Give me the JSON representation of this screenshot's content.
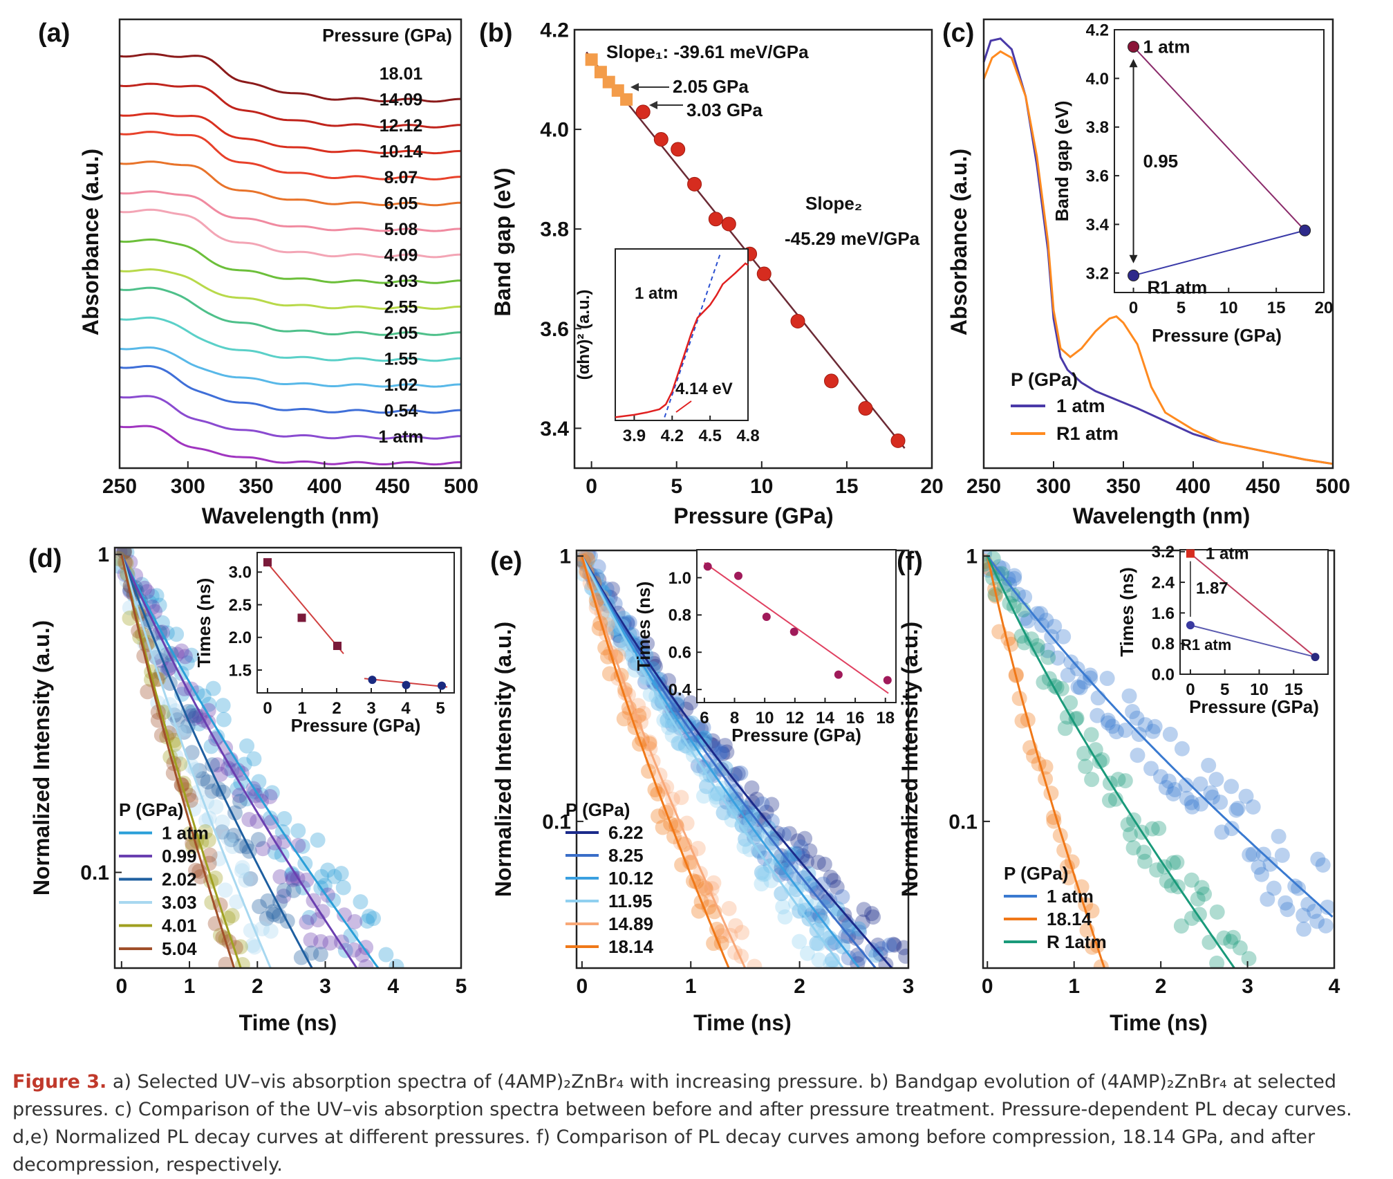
{
  "colors": {
    "caption_accent": "#c0392b",
    "orange_marker": "#f39c4a",
    "red_marker": "#d62c1f",
    "fit_line": "#6b2a35",
    "purple": "#4a3aa8",
    "orange": "#ff8a1f",
    "maroon": "#8a1538",
    "navy": "#1f2a7a"
  },
  "caption": {
    "label": "Figure 3.",
    "text": "a) Selected UV–vis absorption spectra of (4AMP)₂ZnBr₄ with increasing pressure. b) Bandgap evolution of (4AMP)₂ZnBr₄ at selected pressures. c) Comparison of the UV–vis absorption spectra between before and after pressure treatment. Pressure-dependent PL decay curves. d,e) Normalized PL decay curves at different pressures. f) Comparison of PL decay curves among before compression, 18.14 GPa, and after decompression, respectively."
  },
  "chart_data": [
    {
      "panel": "(a)",
      "type": "line",
      "xlabel": "Wavelength (nm)",
      "ylabel": "Absorbance (a.u.)",
      "xlim": [
        250,
        500
      ],
      "xticks": [
        250,
        300,
        350,
        400,
        450,
        500
      ],
      "legend_title": "Pressure (GPa)",
      "series": [
        {
          "name": "18.01",
          "color": "#8b1a1a"
        },
        {
          "name": "14.09",
          "color": "#c0241c"
        },
        {
          "name": "12.12",
          "color": "#d9301f"
        },
        {
          "name": "10.14",
          "color": "#e8412a"
        },
        {
          "name": "8.07",
          "color": "#e8732a"
        },
        {
          "name": "6.05",
          "color": "#f08aa0"
        },
        {
          "name": "5.08",
          "color": "#f3a5b5"
        },
        {
          "name": "4.09",
          "color": "#6cbf3a"
        },
        {
          "name": "3.03",
          "color": "#b8d94a"
        },
        {
          "name": "2.55",
          "color": "#4ec08a"
        },
        {
          "name": "2.05",
          "color": "#5ad0c8"
        },
        {
          "name": "1.55",
          "color": "#58b8e8"
        },
        {
          "name": "1.02",
          "color": "#3f6fd8"
        },
        {
          "name": "0.54",
          "color": "#8a4bd0"
        },
        {
          "name": "1 atm",
          "color": "#a035c0"
        }
      ]
    },
    {
      "panel": "(b)",
      "type": "scatter",
      "xlabel": "Pressure (GPa)",
      "ylabel": "Band gap (eV)",
      "xlim": [
        -1,
        20
      ],
      "ylim": [
        3.32,
        4.2
      ],
      "xticks": [
        0,
        5,
        10,
        15,
        20
      ],
      "yticks": [
        3.4,
        3.6,
        3.8,
        4.0,
        4.2
      ],
      "series": [
        {
          "name": "low-pressure",
          "marker": "square",
          "x": [
            0,
            0.54,
            1.02,
            1.55,
            2.05
          ],
          "y": [
            4.14,
            4.115,
            4.095,
            4.078,
            4.06
          ]
        },
        {
          "name": "high-pressure",
          "marker": "circle",
          "x": [
            3.03,
            4.09,
            5.08,
            6.05,
            7.3,
            8.07,
            9.3,
            10.14,
            12.12,
            14.09,
            16.1,
            18.01
          ],
          "y": [
            4.035,
            3.98,
            3.96,
            3.89,
            3.82,
            3.81,
            3.75,
            3.71,
            3.615,
            3.495,
            3.44,
            3.375
          ]
        }
      ],
      "fit_line": {
        "x": [
          -0.3,
          18.4
        ],
        "y": [
          4.155,
          3.36
        ]
      },
      "annotations": {
        "slope1": "Slope₁: -39.61 meV/GPa",
        "p1": "2.05 GPa",
        "p2": "3.03 GPa",
        "slope2_label": "Slope₂",
        "slope2_value": "-45.29 meV/GPa"
      },
      "inset": {
        "ylabel": "(αhv)² (a.u.)",
        "xlim": [
          3.75,
          4.8
        ],
        "xticks": [
          3.9,
          4.2,
          4.5,
          4.8
        ],
        "series_label": "1 atm",
        "gap_label": "4.14 eV",
        "curve": {
          "x": [
            3.75,
            3.9,
            4.0,
            4.1,
            4.15,
            4.2,
            4.25,
            4.3,
            4.35,
            4.4,
            4.5,
            4.55,
            4.6,
            4.7,
            4.78,
            4.8
          ],
          "y": [
            0.0,
            0.015,
            0.03,
            0.05,
            0.08,
            0.16,
            0.28,
            0.4,
            0.52,
            0.62,
            0.7,
            0.76,
            0.83,
            0.9,
            0.96,
            0.95
          ]
        },
        "tangent": {
          "x": [
            4.14,
            4.58
          ],
          "y": [
            0.0,
            1.02
          ]
        }
      }
    },
    {
      "panel": "(c)",
      "type": "line",
      "xlabel": "Wavelength (nm)",
      "ylabel": "Absorbance (a.u.)",
      "xlim": [
        250,
        500
      ],
      "ylim": [
        0,
        1
      ],
      "xticks": [
        250,
        300,
        350,
        400,
        450,
        500
      ],
      "legend_title": "P (GPa)",
      "series": [
        {
          "name": "1 atm",
          "color": "#4a3aa8",
          "x": [
            250,
            255,
            262,
            270,
            280,
            288,
            296,
            300,
            305,
            310,
            320,
            330,
            345,
            360,
            380,
            400,
            420,
            450,
            480,
            500
          ],
          "y": [
            0.94,
            0.99,
            0.995,
            0.97,
            0.86,
            0.7,
            0.5,
            0.34,
            0.25,
            0.22,
            0.19,
            0.17,
            0.15,
            0.13,
            0.1,
            0.07,
            0.05,
            0.03,
            0.01,
            0.0
          ]
        },
        {
          "name": "R1 atm",
          "color": "#ff8a1f",
          "x": [
            250,
            256,
            262,
            270,
            280,
            288,
            296,
            300,
            305,
            312,
            320,
            330,
            340,
            345,
            350,
            360,
            370,
            380,
            400,
            420,
            450,
            480,
            500
          ],
          "y": [
            0.9,
            0.95,
            0.965,
            0.95,
            0.86,
            0.72,
            0.52,
            0.36,
            0.27,
            0.25,
            0.27,
            0.31,
            0.34,
            0.345,
            0.33,
            0.28,
            0.18,
            0.12,
            0.08,
            0.05,
            0.03,
            0.01,
            0.0
          ]
        }
      ],
      "inset": {
        "xlabel": "Pressure (GPa)",
        "ylabel": "Band gap (eV)",
        "xlim": [
          -2,
          20
        ],
        "ylim": [
          3.12,
          4.2
        ],
        "xticks": [
          0,
          5,
          10,
          15,
          20
        ],
        "yticks": [
          3.2,
          3.4,
          3.6,
          3.8,
          4.0,
          4.2
        ],
        "points": [
          {
            "label": "1 atm",
            "x": 0,
            "y": 4.13,
            "color": "#8a1538"
          },
          {
            "label": "R1 atm",
            "x": 0,
            "y": 3.19,
            "color": "#2e2a8a"
          },
          {
            "label": "",
            "x": 18.01,
            "y": 3.375,
            "color": "#2e2a8a"
          }
        ],
        "diff_label": "0.95"
      }
    },
    {
      "panel": "(d)",
      "type": "scatter",
      "xlabel": "Time (ns)",
      "ylabel": "Normalized Intensity (a.u.)",
      "yscale": "log",
      "xlim": [
        -0.1,
        5
      ],
      "xticks": [
        0,
        1,
        2,
        3,
        4,
        5
      ],
      "ylim": [
        0.05,
        1.05
      ],
      "yticks": [
        0.1,
        1
      ],
      "yticklabels": [
        "0.1",
        "1"
      ],
      "legend_title": "P (GPa)",
      "series": [
        {
          "name": "1 atm",
          "color": "#2a9fd8",
          "tau": 1.55
        },
        {
          "name": "0.99",
          "color": "#6a3fb0",
          "tau": 1.42
        },
        {
          "name": "2.02",
          "color": "#1f5fa0",
          "tau": 1.15
        },
        {
          "name": "3.03",
          "color": "#a8d8f0",
          "tau": 0.9
        },
        {
          "name": "4.01",
          "color": "#a0a020",
          "tau": 0.72
        },
        {
          "name": "5.04",
          "color": "#a0502a",
          "tau": 0.68
        }
      ],
      "inset": {
        "xlabel": "Pressure (GPa)",
        "ylabel": "Times (ns)",
        "xlim": [
          -0.3,
          5.4
        ],
        "ylim": [
          1.15,
          3.3
        ],
        "xticks": [
          0,
          1,
          2,
          3,
          4,
          5
        ],
        "yticks": [
          1.5,
          2.0,
          2.5,
          3.0
        ],
        "yticklabels": [
          "1.5",
          "2.0",
          "2.5",
          "3.0"
        ],
        "squares": {
          "x": [
            0,
            0.99,
            2.02
          ],
          "y": [
            3.15,
            2.3,
            1.87
          ]
        },
        "circles": {
          "x": [
            3.03,
            4.01,
            5.04
          ],
          "y": [
            1.35,
            1.27,
            1.26
          ]
        }
      }
    },
    {
      "panel": "(e)",
      "type": "scatter",
      "xlabel": "Time (ns)",
      "ylabel": "Normalized Intensity (a.u.)",
      "yscale": "log",
      "xlim": [
        -0.05,
        3
      ],
      "xticks": [
        0,
        1,
        2,
        3
      ],
      "ylim": [
        0.028,
        1.05
      ],
      "yticks": [
        0.1,
        1
      ],
      "yticklabels": [
        "0.1",
        "1"
      ],
      "legend_title": "P (GPa)",
      "series": [
        {
          "name": "6.22",
          "color": "#1b2a8a",
          "tau": 0.95
        },
        {
          "name": "8.25",
          "color": "#3a6ec8",
          "tau": 0.9
        },
        {
          "name": "10.12",
          "color": "#3aa0e0",
          "tau": 0.85
        },
        {
          "name": "11.95",
          "color": "#90d0f0",
          "tau": 0.8
        },
        {
          "name": "14.89",
          "color": "#f8a878",
          "tau": 0.5
        },
        {
          "name": "18.14",
          "color": "#f07818",
          "tau": 0.45
        }
      ],
      "inset": {
        "xlabel": "Pressure (GPa)",
        "ylabel": "Times (ns)",
        "xlim": [
          5.5,
          18.7
        ],
        "ylim": [
          0.33,
          1.15
        ],
        "xticks": [
          6,
          8,
          10,
          12,
          14,
          16,
          18
        ],
        "yticks": [
          0.4,
          0.6,
          0.8,
          1.0
        ],
        "yticklabels": [
          "0.4",
          "0.6",
          "0.8",
          "1.0"
        ],
        "points": {
          "x": [
            6.22,
            8.25,
            10.12,
            11.95,
            14.89,
            18.14
          ],
          "y": [
            1.06,
            1.01,
            0.79,
            0.71,
            0.48,
            0.45
          ]
        }
      }
    },
    {
      "panel": "(f)",
      "type": "scatter",
      "xlabel": "Time (ns)",
      "ylabel": "Normalized Intensity (a.u.)",
      "yscale": "log",
      "xlim": [
        -0.05,
        4
      ],
      "xticks": [
        0,
        1,
        2,
        3,
        4
      ],
      "ylim": [
        0.028,
        1.05
      ],
      "yticks": [
        0.1,
        1
      ],
      "yticklabels": [
        "0.1",
        "1"
      ],
      "legend_title": "P (GPa)",
      "series": [
        {
          "name": "1 atm",
          "color": "#3a7ad0",
          "tau": 1.55
        },
        {
          "name": "18.14",
          "color": "#f07818",
          "tau": 0.45
        },
        {
          "name": "R 1atm",
          "color": "#1a9a7a",
          "tau": 0.95
        }
      ],
      "inset": {
        "xlabel": "Pressure (GPa)",
        "ylabel": "Times (ns)",
        "xlim": [
          -1.5,
          20
        ],
        "ylim": [
          0,
          3.25
        ],
        "xticks": [
          0,
          5,
          10,
          15
        ],
        "yticks": [
          0.0,
          0.8,
          1.6,
          2.4,
          3.2
        ],
        "yticklabels": [
          "0.0",
          "0.8",
          "1.6",
          "2.4",
          "3.2"
        ],
        "points": [
          {
            "label": "1 atm",
            "x": 0,
            "y": 3.15,
            "color": "#d62c1f",
            "marker": "square"
          },
          {
            "label": "R1 atm",
            "x": 0,
            "y": 1.28,
            "color": "#3a3aa0",
            "marker": "circle"
          },
          {
            "label": "",
            "x": 18.14,
            "y": 0.45,
            "color": "#2a2a80",
            "marker": "circle"
          }
        ],
        "diff_label": "1.87"
      }
    }
  ]
}
